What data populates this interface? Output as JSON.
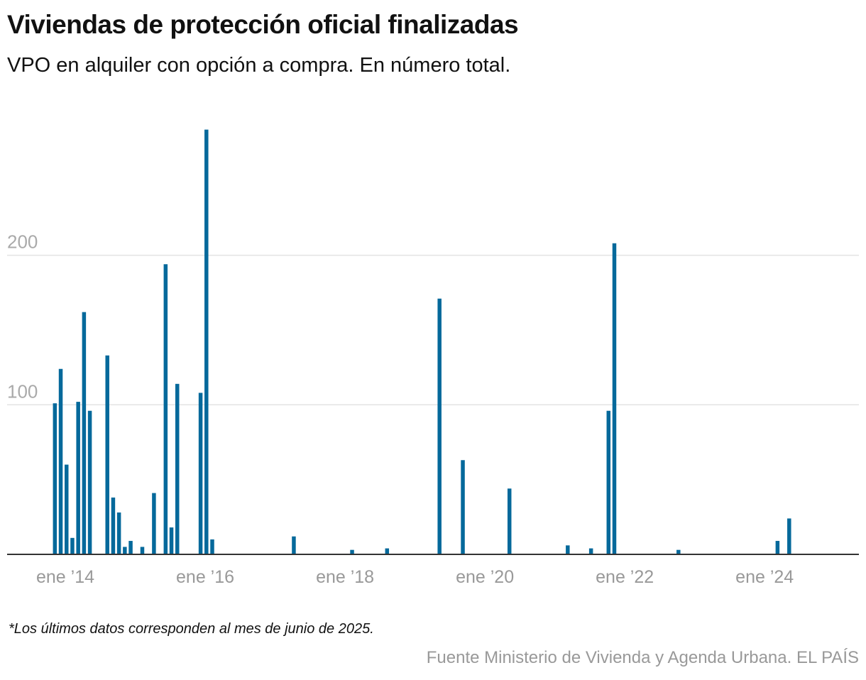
{
  "header": {
    "title": "Viviendas de protección oficial finalizadas",
    "subtitle": "VPO en alquiler con opción a compra. En número total."
  },
  "footer": {
    "note": "*Los últimos datos corresponden al mes de junio de 2025.",
    "source": "Fuente Ministerio de Vivienda y Agenda Urbana. EL PAÍS"
  },
  "chart_data": {
    "type": "bar",
    "title": "Viviendas de protección oficial finalizadas",
    "subtitle": "VPO en alquiler con opción a compra. En número total.",
    "xlabel": "",
    "ylabel": "",
    "ylim": [
      0,
      290
    ],
    "grid": true,
    "bar_color": "#05699b",
    "y_ticks": [
      100,
      200
    ],
    "y_tick_labels": [
      "100",
      "200"
    ],
    "x_ticks": [
      "2014-01",
      "2016-01",
      "2018-01",
      "2020-01",
      "2022-01",
      "2024-01"
    ],
    "x_tick_labels": [
      "ene ’14",
      "ene ’16",
      "ene ’18",
      "ene ’20",
      "ene ’22",
      "ene ’24"
    ],
    "x_range": [
      "2013-11",
      "2025-06"
    ],
    "x": [
      "2013-11",
      "2013-12",
      "2014-01",
      "2014-02",
      "2014-03",
      "2014-04",
      "2014-05",
      "2014-08",
      "2014-09",
      "2014-10",
      "2014-11",
      "2014-12",
      "2015-02",
      "2015-04",
      "2015-06",
      "2015-07",
      "2015-08",
      "2015-12",
      "2016-01",
      "2016-02",
      "2017-04",
      "2018-02",
      "2018-08",
      "2019-05",
      "2019-09",
      "2020-05",
      "2021-03",
      "2021-07",
      "2021-10",
      "2021-11",
      "2022-10",
      "2024-03",
      "2024-05"
    ],
    "values": [
      101,
      124,
      60,
      11,
      102,
      162,
      96,
      133,
      38,
      28,
      5,
      9,
      5,
      41,
      194,
      18,
      114,
      108,
      284,
      10,
      12,
      3,
      4,
      171,
      63,
      44,
      6,
      4,
      96,
      208,
      3,
      9,
      24
    ]
  }
}
